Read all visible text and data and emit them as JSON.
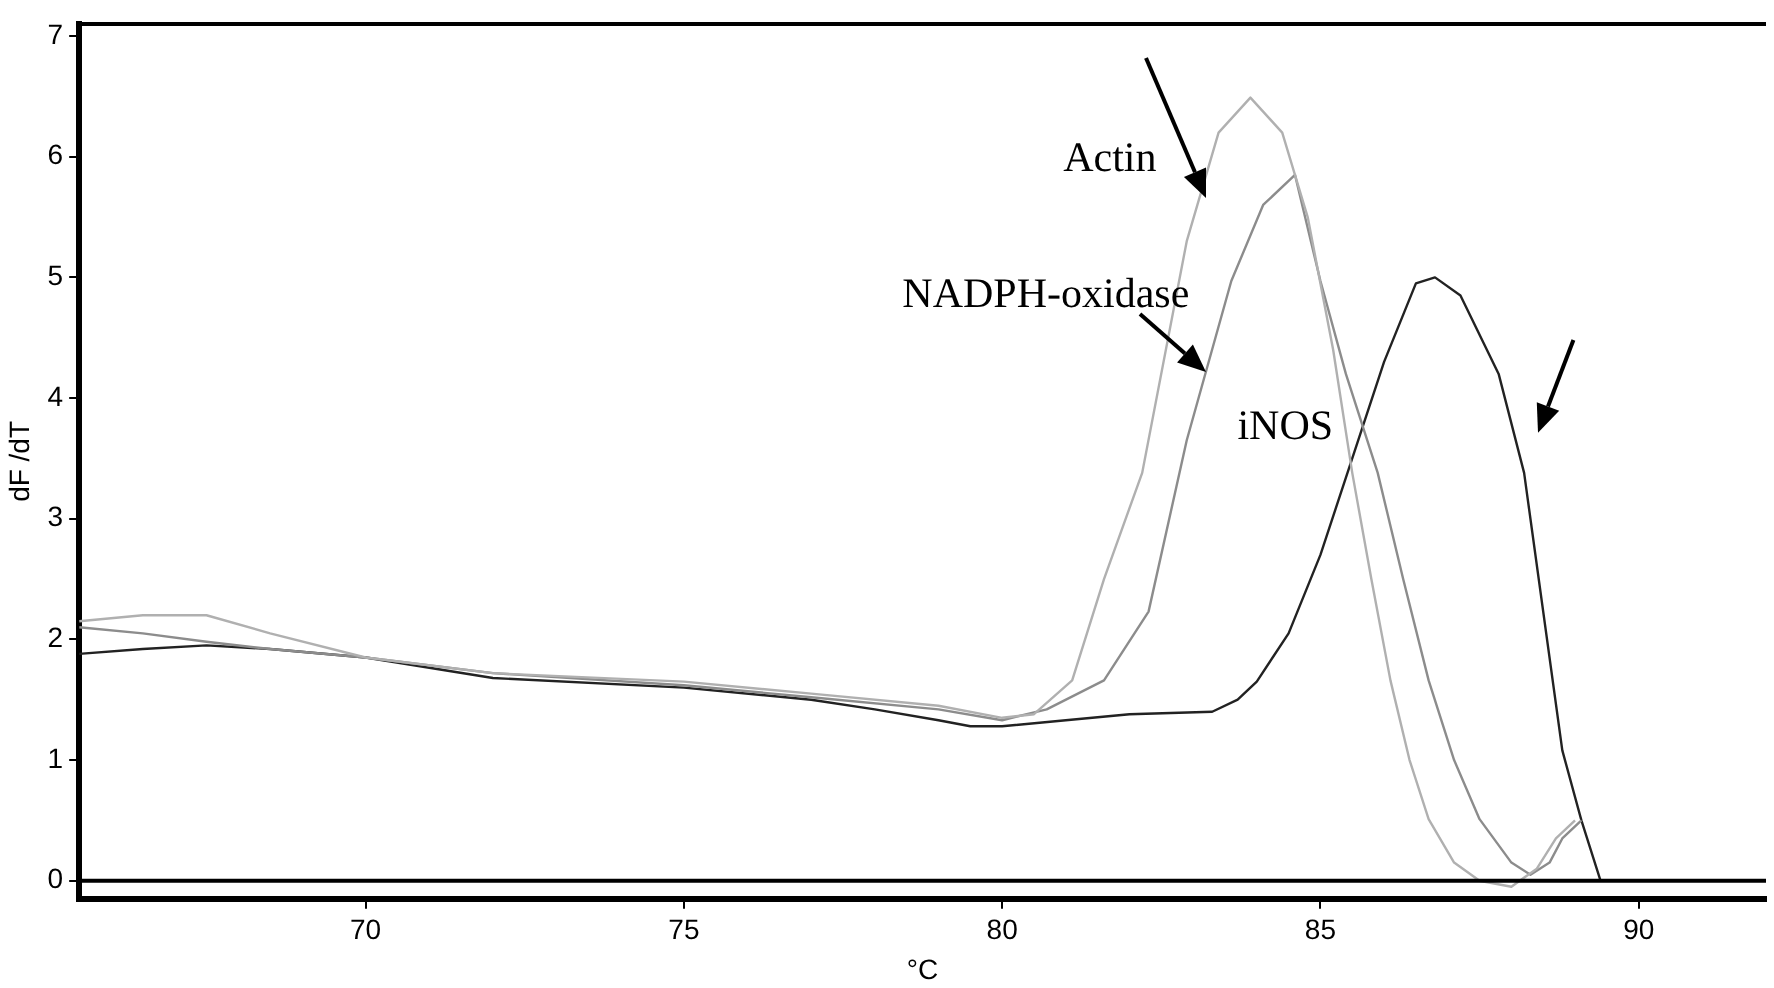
{
  "chart_data": {
    "type": "line",
    "xlabel": "°C",
    "ylabel": "dF /dT",
    "xlim": [
      65.5,
      92
    ],
    "ylim": [
      -0.15,
      7.1
    ],
    "xticks": [
      70,
      75,
      80,
      85,
      90
    ],
    "yticks": [
      0,
      1,
      2,
      3,
      4,
      5,
      6,
      7
    ],
    "grid": false,
    "legend": false,
    "marker": "none",
    "line_style": "solid",
    "ref_lines": [
      {
        "axis": "y",
        "value": 0,
        "color": "#000000"
      }
    ],
    "annotations": [
      {
        "text": "Actin",
        "x": 83.2,
        "y": 5.66
      },
      {
        "text": "NADPH-oxidase",
        "x": 83.2,
        "y": 4.22
      },
      "iNOS"
    ],
    "series": [
      {
        "color": "#b0b0b0",
        "x": [
          65.5,
          66.5,
          67.5,
          68.5,
          70,
          72,
          75,
          77,
          79,
          80,
          80.5,
          81.1,
          81.6,
          82.2,
          82.9,
          83.4,
          83.9,
          84.4,
          84.8,
          85.2,
          85.5,
          85.8,
          86.1,
          86.4,
          86.7,
          87.1,
          87.5,
          88,
          88.4,
          88.7,
          89
        ],
        "values": [
          2.15,
          2.2,
          2.2,
          2.05,
          1.85,
          1.72,
          1.65,
          1.55,
          1.45,
          1.35,
          1.38,
          1.66,
          2.5,
          3.38,
          5.3,
          6.2,
          6.49,
          6.2,
          5.5,
          4.4,
          3.38,
          2.5,
          1.66,
          1.0,
          0.51,
          0.15,
          0.0,
          -0.05,
          0.1,
          0.35,
          0.5
        ]
      },
      {
        "color": "#8c8c8c",
        "x": [
          65.5,
          66.5,
          67.5,
          68.5,
          70,
          72,
          75,
          77,
          79,
          80,
          80.7,
          81.6,
          82.3,
          82.9,
          83.6,
          84.1,
          84.6,
          85,
          85.4,
          85.9,
          86.3,
          86.7,
          87.1,
          87.5,
          88,
          88.3,
          88.6,
          88.8,
          89.1
        ],
        "values": [
          2.1,
          2.05,
          1.98,
          1.92,
          1.85,
          1.72,
          1.62,
          1.52,
          1.42,
          1.33,
          1.42,
          1.66,
          2.23,
          3.65,
          4.97,
          5.6,
          5.85,
          4.97,
          4.2,
          3.38,
          2.5,
          1.66,
          1.0,
          0.51,
          0.15,
          0.05,
          0.15,
          0.35,
          0.5
        ]
      },
      {
        "color": "#222222",
        "x": [
          65.5,
          66.5,
          67.5,
          68.5,
          70,
          72,
          75,
          77,
          78,
          79,
          79.5,
          80,
          81,
          82,
          83.3,
          83.7,
          84,
          84.5,
          85,
          85.5,
          86,
          86.5,
          86.8,
          87.2,
          87.8,
          88.2,
          88.8,
          89.1,
          89.4
        ],
        "values": [
          1.88,
          1.92,
          1.95,
          1.92,
          1.85,
          1.68,
          1.6,
          1.5,
          1.42,
          1.33,
          1.28,
          1.28,
          1.33,
          1.38,
          1.4,
          1.5,
          1.65,
          2.05,
          2.7,
          3.5,
          4.3,
          4.95,
          5.0,
          4.85,
          4.2,
          3.38,
          1.08,
          0.5,
          0.0
        ]
      }
    ]
  }
}
